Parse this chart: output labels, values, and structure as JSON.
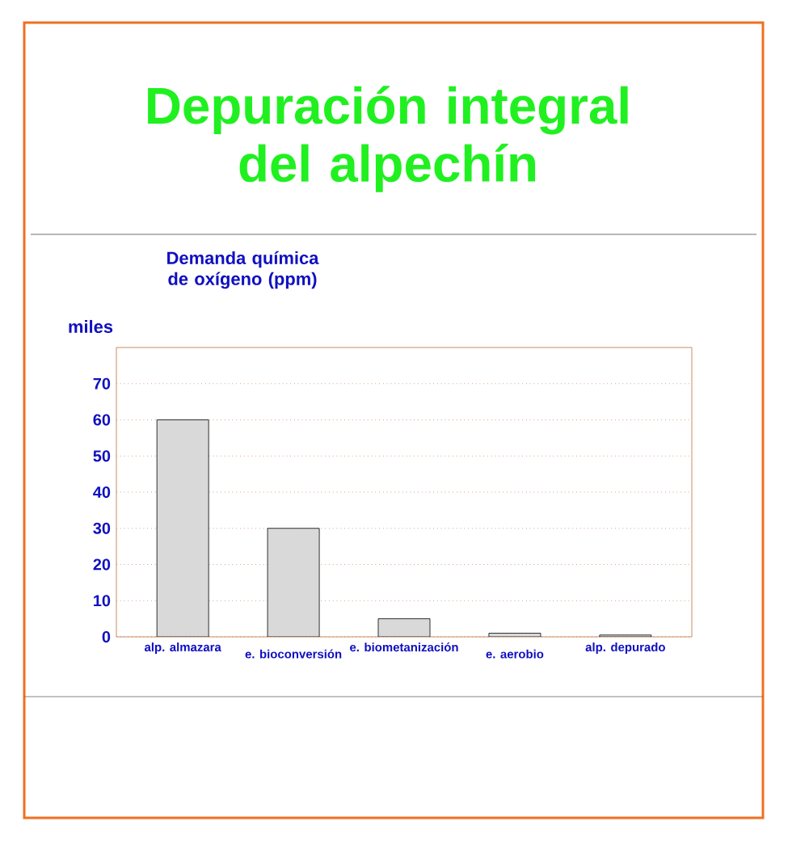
{
  "chart_data": {
    "type": "bar",
    "title": "Depuración integral del alpechín",
    "subtitle": "Demanda química de oxígeno (ppm)",
    "annotations": [
      "miles"
    ],
    "categories": [
      "alp. almazara",
      "e. bioconversión",
      "e. biometanización",
      "e. aerobio",
      "alp. depurado"
    ],
    "values": [
      60,
      30,
      5,
      1,
      0.5
    ],
    "color": "#d9d9d9",
    "ylim": [
      0,
      80
    ],
    "yticks": [
      0,
      10,
      20,
      30,
      40,
      50,
      60,
      70
    ],
    "grid": "y"
  }
}
